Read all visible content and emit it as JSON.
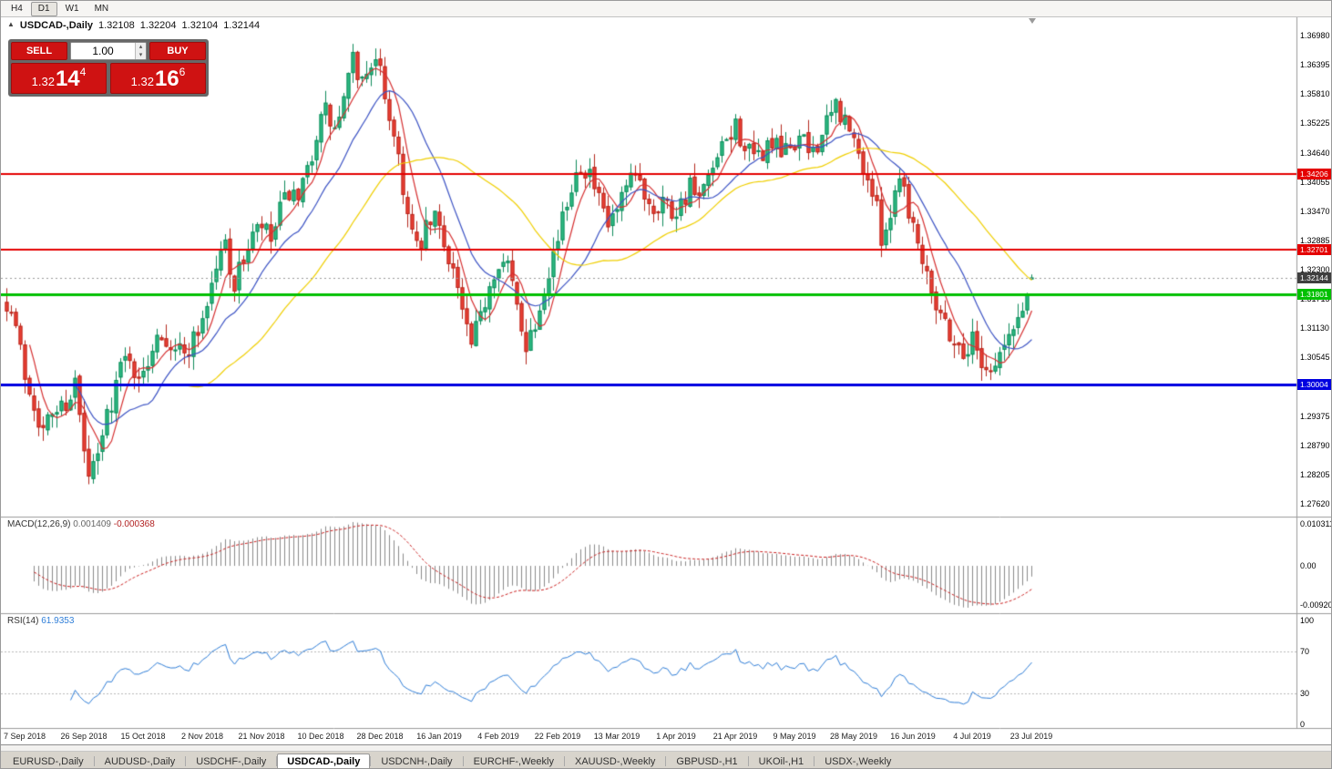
{
  "toolbar": {
    "timeframes": [
      {
        "label": "H4",
        "active": false
      },
      {
        "label": "D1",
        "active": true
      },
      {
        "label": "W1",
        "active": false
      },
      {
        "label": "MN",
        "active": false
      }
    ]
  },
  "icons": {
    "symbol_arrow": "▲",
    "volume_up": "▴",
    "volume_down": "▾"
  },
  "chart_header": {
    "title": "USDCAD-,Daily",
    "open": "1.32108",
    "high": "1.32204",
    "low": "1.32104",
    "close": "1.32144"
  },
  "trade_panel": {
    "sell_label": "SELL",
    "buy_label": "BUY",
    "volume": "1.00",
    "bid": {
      "prefix": "1.32",
      "big": "14",
      "sup": "4"
    },
    "ask": {
      "prefix": "1.32",
      "big": "16",
      "sup": "6"
    }
  },
  "chart_data": {
    "type": "candlestick",
    "symbol": "USDCAD-",
    "timeframe": "Daily",
    "ohlc_current": {
      "open": 1.32108,
      "high": 1.32204,
      "low": 1.32104,
      "close": 1.32144
    },
    "price_axis": {
      "max": 1.3698,
      "min": 1.2762,
      "step": 0.00585,
      "labels": [
        "1.36980",
        "1.36395",
        "1.35810",
        "1.35225",
        "1.34640",
        "1.34055",
        "1.33470",
        "1.32885",
        "1.32300",
        "1.31715",
        "1.31130",
        "1.30545",
        "1.29960",
        "1.29375",
        "1.28790",
        "1.28205",
        "1.27620"
      ]
    },
    "horizontal_lines": [
      {
        "price": 1.34206,
        "label": "1.34206",
        "color": "#e40000",
        "width": 2
      },
      {
        "price": 1.32701,
        "label": "1.32701",
        "color": "#e40000",
        "width": 2
      },
      {
        "price": 1.31801,
        "label": "1.31801",
        "color": "#00c000",
        "width": 3
      },
      {
        "price": 1.30004,
        "label": "1.30004",
        "color": "#0000e0",
        "width": 3
      }
    ],
    "current_price_tag": {
      "price": 1.32144,
      "label": "1.32144",
      "color": "#3f3f3f"
    },
    "date_axis": {
      "first_bar": 4,
      "bar_step": 13,
      "labels": [
        "7 Sep 2018",
        "26 Sep 2018",
        "15 Oct 2018",
        "2 Nov 2018",
        "21 Nov 2018",
        "10 Dec 2018",
        "28 Dec 2018",
        "16 Jan 2019",
        "4 Feb 2019",
        "22 Feb 2019",
        "13 Mar 2019",
        "1 Apr 2019",
        "21 Apr 2019",
        "9 May 2019",
        "28 May 2019",
        "16 Jun 2019",
        "4 Jul 2019",
        "23 Jul 2019"
      ]
    },
    "bars": {
      "count": 226,
      "seed": 7,
      "noise_body": 0.0024,
      "noise_wick": 0.0028,
      "trend_anchors": [
        [
          0,
          1.317
        ],
        [
          2,
          1.3115
        ],
        [
          4,
          1.302
        ],
        [
          6,
          1.2965
        ],
        [
          8,
          1.2905
        ],
        [
          10,
          1.2945
        ],
        [
          13,
          1.2965
        ],
        [
          15,
          1.3005
        ],
        [
          17,
          1.286
        ],
        [
          18,
          1.2812
        ],
        [
          20,
          1.2852
        ],
        [
          22,
          1.294
        ],
        [
          25,
          1.3035
        ],
        [
          27,
          1.3065
        ],
        [
          29,
          1.2995
        ],
        [
          31,
          1.305
        ],
        [
          33,
          1.3115
        ],
        [
          36,
          1.3085
        ],
        [
          39,
          1.306
        ],
        [
          42,
          1.311
        ],
        [
          44,
          1.3165
        ],
        [
          46,
          1.3235
        ],
        [
          48,
          1.3285
        ],
        [
          50,
          1.3195
        ],
        [
          52,
          1.3255
        ],
        [
          54,
          1.3295
        ],
        [
          56,
          1.3315
        ],
        [
          58,
          1.3285
        ],
        [
          60,
          1.3345
        ],
        [
          62,
          1.3385
        ],
        [
          64,
          1.3355
        ],
        [
          66,
          1.3425
        ],
        [
          68,
          1.3505
        ],
        [
          70,
          1.3545
        ],
        [
          72,
          1.3505
        ],
        [
          74,
          1.3565
        ],
        [
          76,
          1.3645
        ],
        [
          78,
          1.3605
        ],
        [
          80,
          1.365
        ],
        [
          82,
          1.362
        ],
        [
          84,
          1.354
        ],
        [
          86,
          1.346
        ],
        [
          88,
          1.3335
        ],
        [
          90,
          1.3265
        ],
        [
          92,
          1.3305
        ],
        [
          94,
          1.3335
        ],
        [
          96,
          1.3285
        ],
        [
          98,
          1.3235
        ],
        [
          100,
          1.3145
        ],
        [
          102,
          1.3072
        ],
        [
          104,
          1.3135
        ],
        [
          106,
          1.3205
        ],
        [
          108,
          1.3255
        ],
        [
          110,
          1.3235
        ],
        [
          112,
          1.3155
        ],
        [
          114,
          1.3085
        ],
        [
          116,
          1.3125
        ],
        [
          118,
          1.3205
        ],
        [
          120,
          1.3265
        ],
        [
          122,
          1.3325
        ],
        [
          124,
          1.3405
        ],
        [
          126,
          1.3448
        ],
        [
          128,
          1.342
        ],
        [
          130,
          1.3362
        ],
        [
          132,
          1.3315
        ],
        [
          134,
          1.3345
        ],
        [
          136,
          1.3385
        ],
        [
          138,
          1.3415
        ],
        [
          140,
          1.3385
        ],
        [
          142,
          1.3355
        ],
        [
          144,
          1.3375
        ],
        [
          146,
          1.3345
        ],
        [
          148,
          1.3365
        ],
        [
          150,
          1.3395
        ],
        [
          152,
          1.3365
        ],
        [
          154,
          1.3405
        ],
        [
          156,
          1.3445
        ],
        [
          158,
          1.3485
        ],
        [
          160,
          1.3518
        ],
        [
          162,
          1.3475
        ],
        [
          164,
          1.3445
        ],
        [
          166,
          1.3465
        ],
        [
          168,
          1.3485
        ],
        [
          170,
          1.3455
        ],
        [
          172,
          1.3475
        ],
        [
          174,
          1.3495
        ],
        [
          176,
          1.3465
        ],
        [
          178,
          1.3485
        ],
        [
          180,
          1.3515
        ],
        [
          182,
          1.3558
        ],
        [
          184,
          1.3525
        ],
        [
          186,
          1.3482
        ],
        [
          188,
          1.3435
        ],
        [
          190,
          1.3385
        ],
        [
          192,
          1.3302
        ],
        [
          194,
          1.334
        ],
        [
          196,
          1.3432
        ],
        [
          198,
          1.3355
        ],
        [
          200,
          1.3285
        ],
        [
          202,
          1.3235
        ],
        [
          204,
          1.3165
        ],
        [
          206,
          1.3125
        ],
        [
          208,
          1.3085
        ],
        [
          210,
          1.3062
        ],
        [
          212,
          1.3092
        ],
        [
          214,
          1.3052
        ],
        [
          216,
          1.3028
        ],
        [
          218,
          1.3062
        ],
        [
          220,
          1.3092
        ],
        [
          222,
          1.3132
        ],
        [
          224,
          1.318
        ],
        [
          225,
          1.3214
        ]
      ]
    },
    "moving_averages": [
      {
        "period": 6,
        "color": "#d63031"
      },
      {
        "period": 16,
        "color": "#3b52c4"
      },
      {
        "period": 40,
        "color": "#f0cf00"
      }
    ],
    "colors": {
      "up": "#2ebd85",
      "up_border": "#0e8a5a",
      "down": "#ef4136",
      "down_border": "#b4271d",
      "background": "#ffffff"
    },
    "macd": {
      "name": "MACD(12,26,9)",
      "fast": 12,
      "slow": 26,
      "signal": 9,
      "value_main": "0.001409",
      "value_signal": "-0.000368",
      "axis_labels": {
        "top": "0.010311",
        "zero": "0.00",
        "bottom": "-0.009203"
      },
      "histogram_color": "#8a8a8a",
      "signal_color": "#cc2222"
    },
    "rsi": {
      "name": "RSI(14)",
      "period": 14,
      "value": "61.9353",
      "axis_labels": [
        "100",
        "70",
        "30",
        "0"
      ],
      "levels": [
        70,
        30
      ],
      "color": "#2f7ed8"
    }
  },
  "tabs": {
    "items": [
      {
        "label": "EURUSD-,Daily",
        "active": false
      },
      {
        "label": "AUDUSD-,Daily",
        "active": false
      },
      {
        "label": "USDCHF-,Daily",
        "active": false
      },
      {
        "label": "USDCAD-,Daily",
        "active": true
      },
      {
        "label": "USDCNH-,Daily",
        "active": false
      },
      {
        "label": "EURCHF-,Weekly",
        "active": false
      },
      {
        "label": "XAUUSD-,Weekly",
        "active": false
      },
      {
        "label": "GBPUSD-,H1",
        "active": false
      },
      {
        "label": "UKOil-,H1",
        "active": false
      },
      {
        "label": "USDX-,Weekly",
        "active": false
      }
    ]
  }
}
